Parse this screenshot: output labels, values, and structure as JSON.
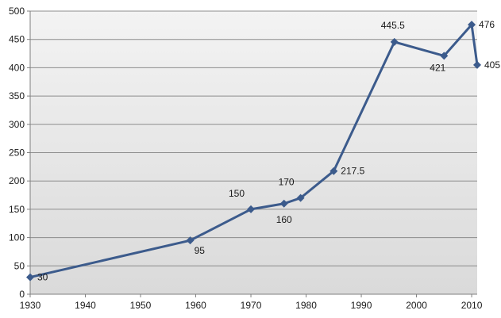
{
  "chart_data": {
    "type": "line",
    "title": "",
    "xlabel": "",
    "ylabel": "",
    "xlim": [
      1930,
      2011
    ],
    "ylim": [
      0,
      500
    ],
    "x_ticks": [
      1930,
      1940,
      1950,
      1960,
      1970,
      1980,
      1990,
      2000,
      2010
    ],
    "y_ticks": [
      0,
      50,
      100,
      150,
      200,
      250,
      300,
      350,
      400,
      450,
      500
    ],
    "grid": "horizontal",
    "legend": "none",
    "series": [
      {
        "color": "#3c5b8c",
        "marker": "diamond",
        "points": [
          {
            "x": 1930,
            "y": 30,
            "label": "30",
            "label_pos": "right"
          },
          {
            "x": 1959,
            "y": 95,
            "label": "95",
            "label_pos": "below-right"
          },
          {
            "x": 1970,
            "y": 150,
            "label": "150",
            "label_pos": "above-left"
          },
          {
            "x": 1976,
            "y": 160,
            "label": "160",
            "label_pos": "below"
          },
          {
            "x": 1979,
            "y": 170,
            "label": "170",
            "label_pos": "above-left"
          },
          {
            "x": 1985,
            "y": 217.5,
            "label": "217.5",
            "label_pos": "right"
          },
          {
            "x": 1996,
            "y": 445.5,
            "label": "445.5",
            "label_pos": "above"
          },
          {
            "x": 2005,
            "y": 421,
            "label": "421",
            "label_pos": "below-left"
          },
          {
            "x": 2010,
            "y": 476,
            "label": "476",
            "label_pos": "right"
          },
          {
            "x": 2011,
            "y": 405,
            "label": "405",
            "label_pos": "right"
          }
        ]
      }
    ]
  }
}
